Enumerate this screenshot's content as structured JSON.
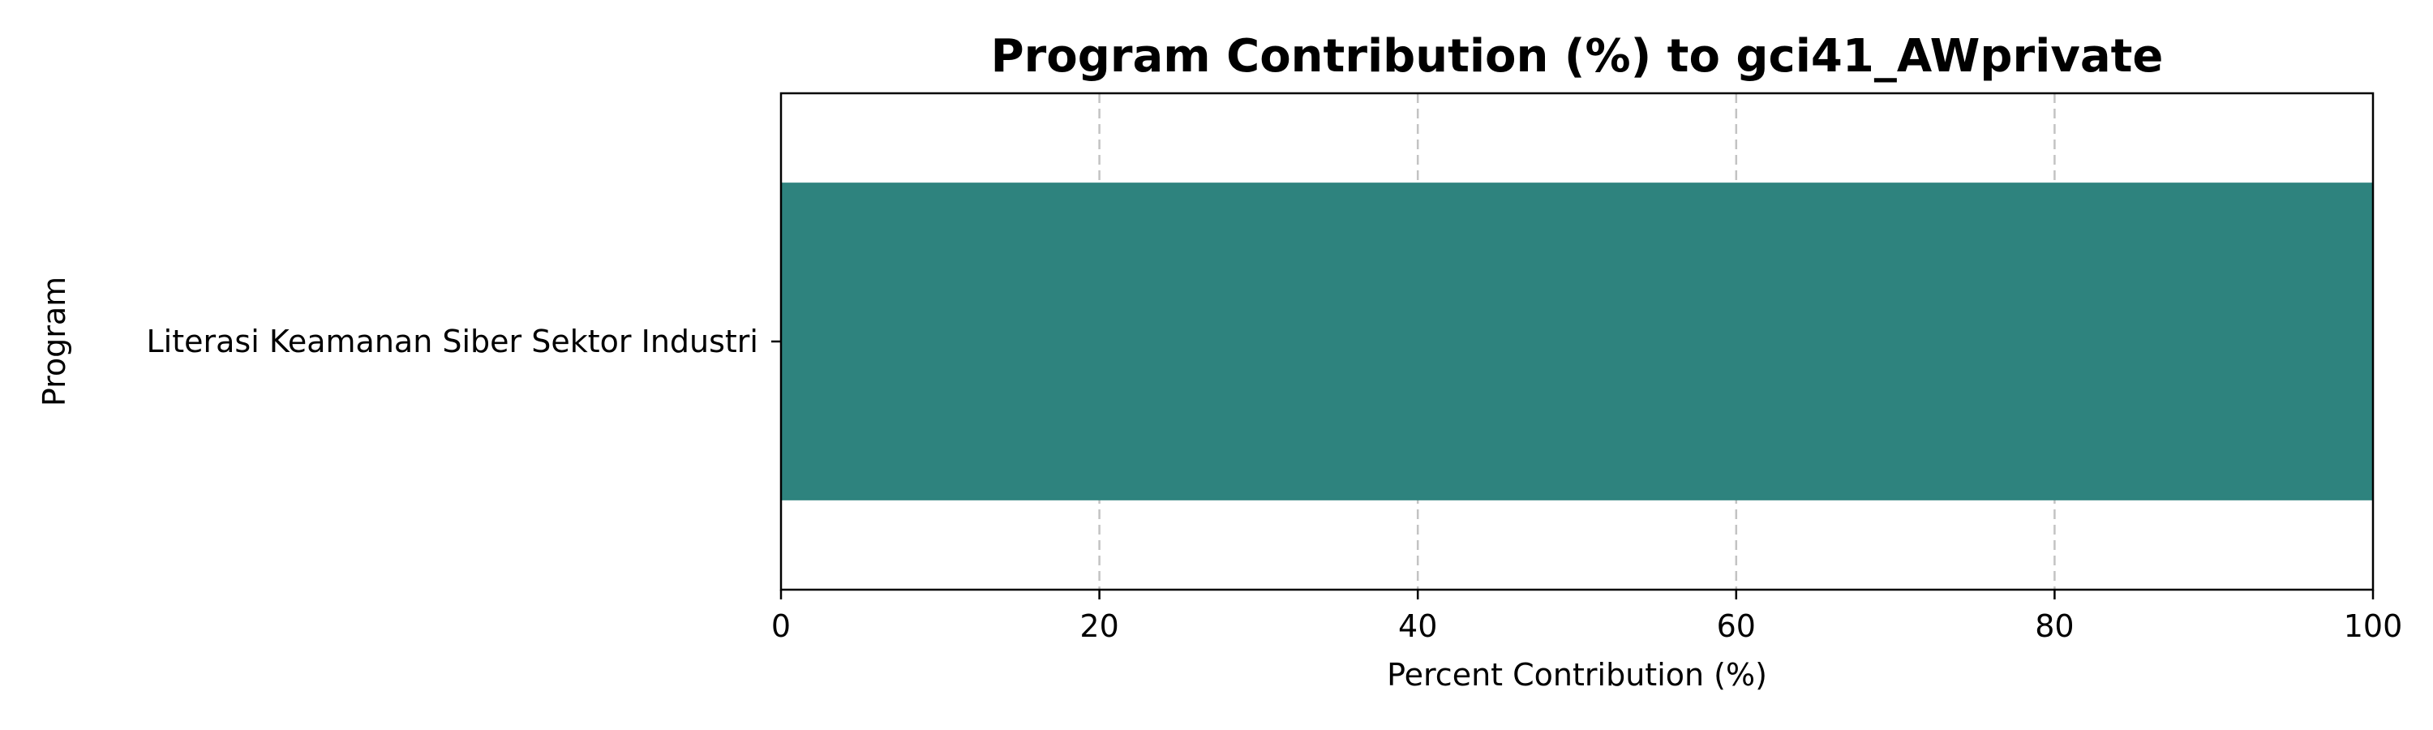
{
  "chart_data": {
    "type": "bar",
    "orientation": "horizontal",
    "title": "Program Contribution (%) to gci41_AWprivate",
    "xlabel": "Percent Contribution (%)",
    "ylabel": "Program",
    "categories": [
      "Literasi Keamanan Siber Sektor Industri"
    ],
    "values": [
      100
    ],
    "xlim": [
      0,
      100
    ],
    "xticks": [
      0,
      20,
      40,
      60,
      80,
      100
    ],
    "xtick_labels": [
      "0",
      "20",
      "40",
      "60",
      "80",
      "100"
    ],
    "grid": "x-dashed",
    "colors": {
      "bar": "#2e837e"
    }
  }
}
